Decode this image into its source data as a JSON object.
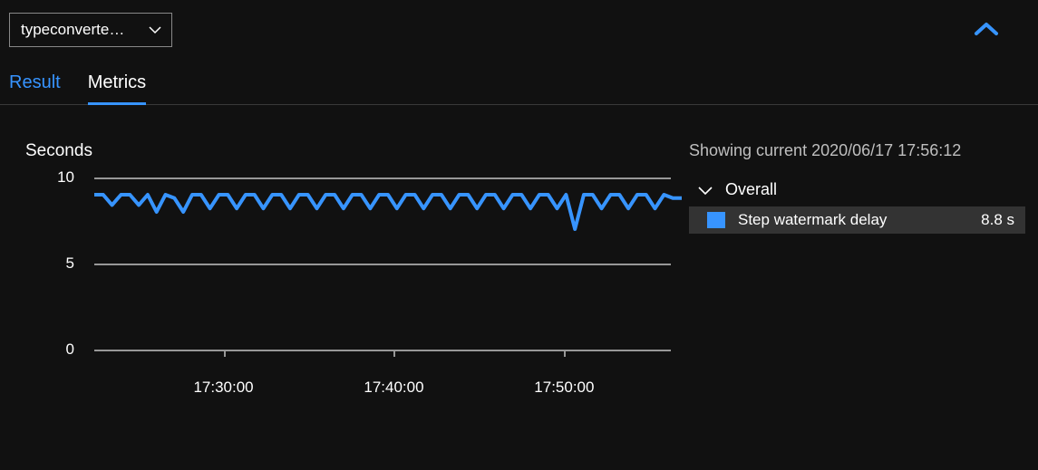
{
  "dropdown": {
    "label": "typeconverte…"
  },
  "tabs": {
    "result": "Result",
    "metrics": "Metrics",
    "active": "metrics"
  },
  "chart": {
    "type": "line",
    "title": "Seconds",
    "ylim": [
      0,
      10
    ],
    "ytick_step": 5,
    "yticks": [
      0,
      5,
      10
    ],
    "xticks": [
      "17:30:00",
      "17:40:00",
      "17:50:00"
    ],
    "xtick_positions_pct": [
      22,
      51,
      80
    ],
    "grid_color": "#989898",
    "background_color": "#111111",
    "line_color": "#3794ff",
    "line_width": 4,
    "tick_fontsize": 17,
    "title_fontsize": 19,
    "series": [
      {
        "x": 0,
        "y": 9.0
      },
      {
        "x": 1,
        "y": 9.0
      },
      {
        "x": 2,
        "y": 8.4
      },
      {
        "x": 3,
        "y": 9.0
      },
      {
        "x": 4,
        "y": 9.0
      },
      {
        "x": 5,
        "y": 8.4
      },
      {
        "x": 6,
        "y": 9.0
      },
      {
        "x": 7,
        "y": 8.0
      },
      {
        "x": 8,
        "y": 9.0
      },
      {
        "x": 9,
        "y": 8.8
      },
      {
        "x": 10,
        "y": 8.0
      },
      {
        "x": 11,
        "y": 9.0
      },
      {
        "x": 12,
        "y": 9.0
      },
      {
        "x": 13,
        "y": 8.2
      },
      {
        "x": 14,
        "y": 9.0
      },
      {
        "x": 15,
        "y": 9.0
      },
      {
        "x": 16,
        "y": 8.2
      },
      {
        "x": 17,
        "y": 9.0
      },
      {
        "x": 18,
        "y": 9.0
      },
      {
        "x": 19,
        "y": 8.2
      },
      {
        "x": 20,
        "y": 9.0
      },
      {
        "x": 21,
        "y": 9.0
      },
      {
        "x": 22,
        "y": 8.2
      },
      {
        "x": 23,
        "y": 9.0
      },
      {
        "x": 24,
        "y": 9.0
      },
      {
        "x": 25,
        "y": 8.2
      },
      {
        "x": 26,
        "y": 9.0
      },
      {
        "x": 27,
        "y": 9.0
      },
      {
        "x": 28,
        "y": 8.2
      },
      {
        "x": 29,
        "y": 9.0
      },
      {
        "x": 30,
        "y": 9.0
      },
      {
        "x": 31,
        "y": 8.2
      },
      {
        "x": 32,
        "y": 9.0
      },
      {
        "x": 33,
        "y": 9.0
      },
      {
        "x": 34,
        "y": 8.2
      },
      {
        "x": 35,
        "y": 9.0
      },
      {
        "x": 36,
        "y": 9.0
      },
      {
        "x": 37,
        "y": 8.2
      },
      {
        "x": 38,
        "y": 9.0
      },
      {
        "x": 39,
        "y": 9.0
      },
      {
        "x": 40,
        "y": 8.2
      },
      {
        "x": 41,
        "y": 9.0
      },
      {
        "x": 42,
        "y": 9.0
      },
      {
        "x": 43,
        "y": 8.2
      },
      {
        "x": 44,
        "y": 9.0
      },
      {
        "x": 45,
        "y": 9.0
      },
      {
        "x": 46,
        "y": 8.2
      },
      {
        "x": 47,
        "y": 9.0
      },
      {
        "x": 48,
        "y": 9.0
      },
      {
        "x": 49,
        "y": 8.2
      },
      {
        "x": 50,
        "y": 9.0
      },
      {
        "x": 51,
        "y": 9.0
      },
      {
        "x": 52,
        "y": 8.2
      },
      {
        "x": 53,
        "y": 9.0
      },
      {
        "x": 54,
        "y": 7.0
      },
      {
        "x": 55,
        "y": 9.0
      },
      {
        "x": 56,
        "y": 9.0
      },
      {
        "x": 57,
        "y": 8.2
      },
      {
        "x": 58,
        "y": 9.0
      },
      {
        "x": 59,
        "y": 9.0
      },
      {
        "x": 60,
        "y": 8.2
      },
      {
        "x": 61,
        "y": 9.0
      },
      {
        "x": 62,
        "y": 9.0
      },
      {
        "x": 63,
        "y": 8.2
      },
      {
        "x": 64,
        "y": 9.0
      },
      {
        "x": 65,
        "y": 8.8
      },
      {
        "x": 66,
        "y": 8.8
      }
    ]
  },
  "legend": {
    "showing_prefix": "Showing current ",
    "showing_time": "2020/06/17 17:56:12",
    "group_label": "Overall",
    "items": [
      {
        "label": "Step watermark delay",
        "value": "8.8 s",
        "color": "#3794ff"
      }
    ]
  },
  "colors": {
    "accent": "#3794ff",
    "text_muted": "#bfbfbf",
    "panel_bg": "#333333"
  }
}
